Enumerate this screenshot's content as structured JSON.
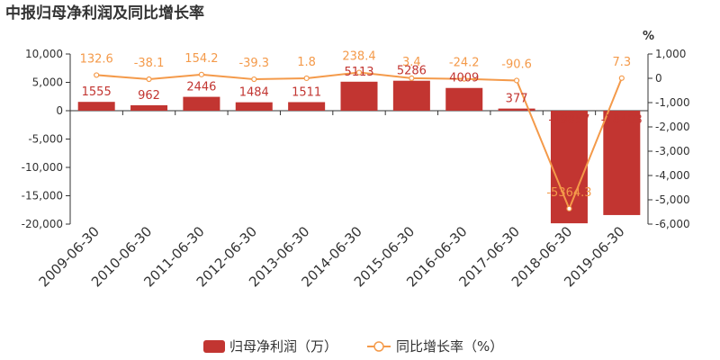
{
  "chart_data": {
    "type": "bar+line",
    "title": "中报归母净利润及同比增长率",
    "categories": [
      "2009-06-30",
      "2010-06-30",
      "2011-06-30",
      "2012-06-30",
      "2013-06-30",
      "2014-06-30",
      "2015-06-30",
      "2016-06-30",
      "2017-06-30",
      "2018-06-30",
      "2019-06-30"
    ],
    "series": [
      {
        "name": "归母净利润（万）",
        "type": "bar",
        "axis": "left",
        "color": "#c23531",
        "values": [
          1555,
          962,
          2446,
          1484,
          1511,
          5113,
          5286,
          4009,
          377,
          -19857,
          -18403
        ],
        "labels": [
          "1555",
          "962",
          "2446",
          "1484",
          "1511",
          "5113",
          "5286",
          "4009",
          "377",
          "-19857",
          "-18403"
        ]
      },
      {
        "name": "同比增长率（%）",
        "type": "line",
        "axis": "right",
        "color": "#f49a4a",
        "values": [
          132.6,
          -38.1,
          154.2,
          -39.3,
          1.8,
          238.4,
          3.4,
          -24.2,
          -90.6,
          -5364.3,
          7.3
        ],
        "labels": [
          "132.6",
          "-38.1",
          "154.2",
          "-39.3",
          "1.8",
          "238.4",
          "3.4",
          "-24.2",
          "-90.6",
          "-5364.3",
          "7.3"
        ]
      }
    ],
    "y_left": {
      "ylim": [
        -20000,
        10000
      ],
      "ticks": [
        10000,
        5000,
        0,
        -5000,
        -10000,
        -15000,
        -20000
      ],
      "tick_labels": [
        "10,000",
        "5,000",
        "0",
        "-5,000",
        "-10,000",
        "-15,000",
        "-20,000"
      ]
    },
    "y_right": {
      "unit": "%",
      "ylim": [
        -6000,
        1000
      ],
      "ticks": [
        1000,
        0,
        -1000,
        -2000,
        -3000,
        -4000,
        -5000,
        -6000
      ],
      "tick_labels": [
        "1,000",
        "0",
        "-1,000",
        "-2,000",
        "-3,000",
        "-4,000",
        "-5,000",
        "-6,000"
      ]
    },
    "grid": false,
    "legend": {
      "placement": "bottom-center",
      "items": [
        "归母净利润（万）",
        "同比增长率（%）"
      ]
    }
  }
}
